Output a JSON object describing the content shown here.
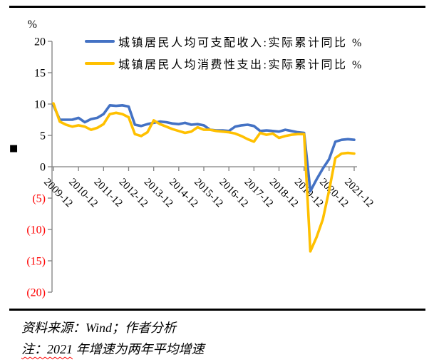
{
  "annotations": {
    "bullet_marker": "■"
  },
  "chart_data": {
    "type": "line",
    "title": "",
    "unit": "%",
    "x_frequency": "quarterly",
    "grid": false,
    "legend_position": "top-left-inside",
    "ylim": [
      -20,
      20
    ],
    "y_ticks": [
      20,
      15,
      10,
      5,
      0,
      -5,
      -10,
      -15,
      -20
    ],
    "y_tick_negative_style": "red-parentheses",
    "x_tick_labels": [
      "2009-12",
      "2010-12",
      "2011-12",
      "2012-12",
      "2013-12",
      "2014-12",
      "2015-12",
      "2016-12",
      "2017-12",
      "2018-12",
      "2019-12",
      "2020-12",
      "2021-12"
    ],
    "x_dates": [
      "2009-12",
      "2010-03",
      "2010-06",
      "2010-09",
      "2010-12",
      "2011-03",
      "2011-06",
      "2011-09",
      "2011-12",
      "2012-03",
      "2012-06",
      "2012-09",
      "2012-12",
      "2013-03",
      "2013-06",
      "2013-09",
      "2013-12",
      "2014-03",
      "2014-06",
      "2014-09",
      "2014-12",
      "2015-03",
      "2015-06",
      "2015-09",
      "2015-12",
      "2016-03",
      "2016-06",
      "2016-09",
      "2016-12",
      "2017-03",
      "2017-06",
      "2017-09",
      "2017-12",
      "2018-03",
      "2018-06",
      "2018-09",
      "2018-12",
      "2019-03",
      "2019-06",
      "2019-09",
      "2019-12",
      "2020-03",
      "2020-06",
      "2020-09",
      "2020-12",
      "2021-03",
      "2021-06",
      "2021-09",
      "2021-12"
    ],
    "series": [
      {
        "name": "城镇居民人均可支配收入:实际累计同比 %",
        "color": "#4472C4",
        "values": [
          9.8,
          7.5,
          7.5,
          7.5,
          7.8,
          7.1,
          7.6,
          7.8,
          8.4,
          9.8,
          9.7,
          9.8,
          9.6,
          6.7,
          6.5,
          6.8,
          7.0,
          7.2,
          7.1,
          6.9,
          6.8,
          7.0,
          6.7,
          6.8,
          6.6,
          5.9,
          5.8,
          5.8,
          5.7,
          6.4,
          6.6,
          6.7,
          6.5,
          5.7,
          5.8,
          5.7,
          5.6,
          5.9,
          5.7,
          5.5,
          5.4,
          -3.9,
          -2.0,
          -0.3,
          1.2,
          4.0,
          4.3,
          4.4,
          4.3
        ]
      },
      {
        "name": "城镇居民人均消费性支出:实际累计同比 %",
        "color": "#FFC000",
        "values": [
          10.1,
          7.2,
          6.7,
          6.4,
          6.6,
          6.4,
          5.9,
          6.2,
          6.8,
          8.4,
          8.6,
          8.4,
          7.9,
          5.2,
          4.9,
          5.5,
          7.4,
          6.8,
          6.4,
          6.0,
          5.7,
          5.4,
          5.6,
          6.3,
          5.9,
          5.9,
          5.7,
          5.6,
          5.5,
          5.3,
          4.9,
          4.4,
          4.0,
          5.4,
          5.1,
          5.3,
          4.6,
          4.9,
          5.1,
          5.2,
          5.2,
          -13.5,
          -11.2,
          -8.4,
          -3.8,
          1.4,
          2.1,
          2.2,
          2.1
        ]
      }
    ]
  },
  "footer": {
    "source": "资料来源：Wind；作者分析",
    "note_underlined": "注：2021",
    "note_rest": " 年增速为两年平均增速"
  }
}
